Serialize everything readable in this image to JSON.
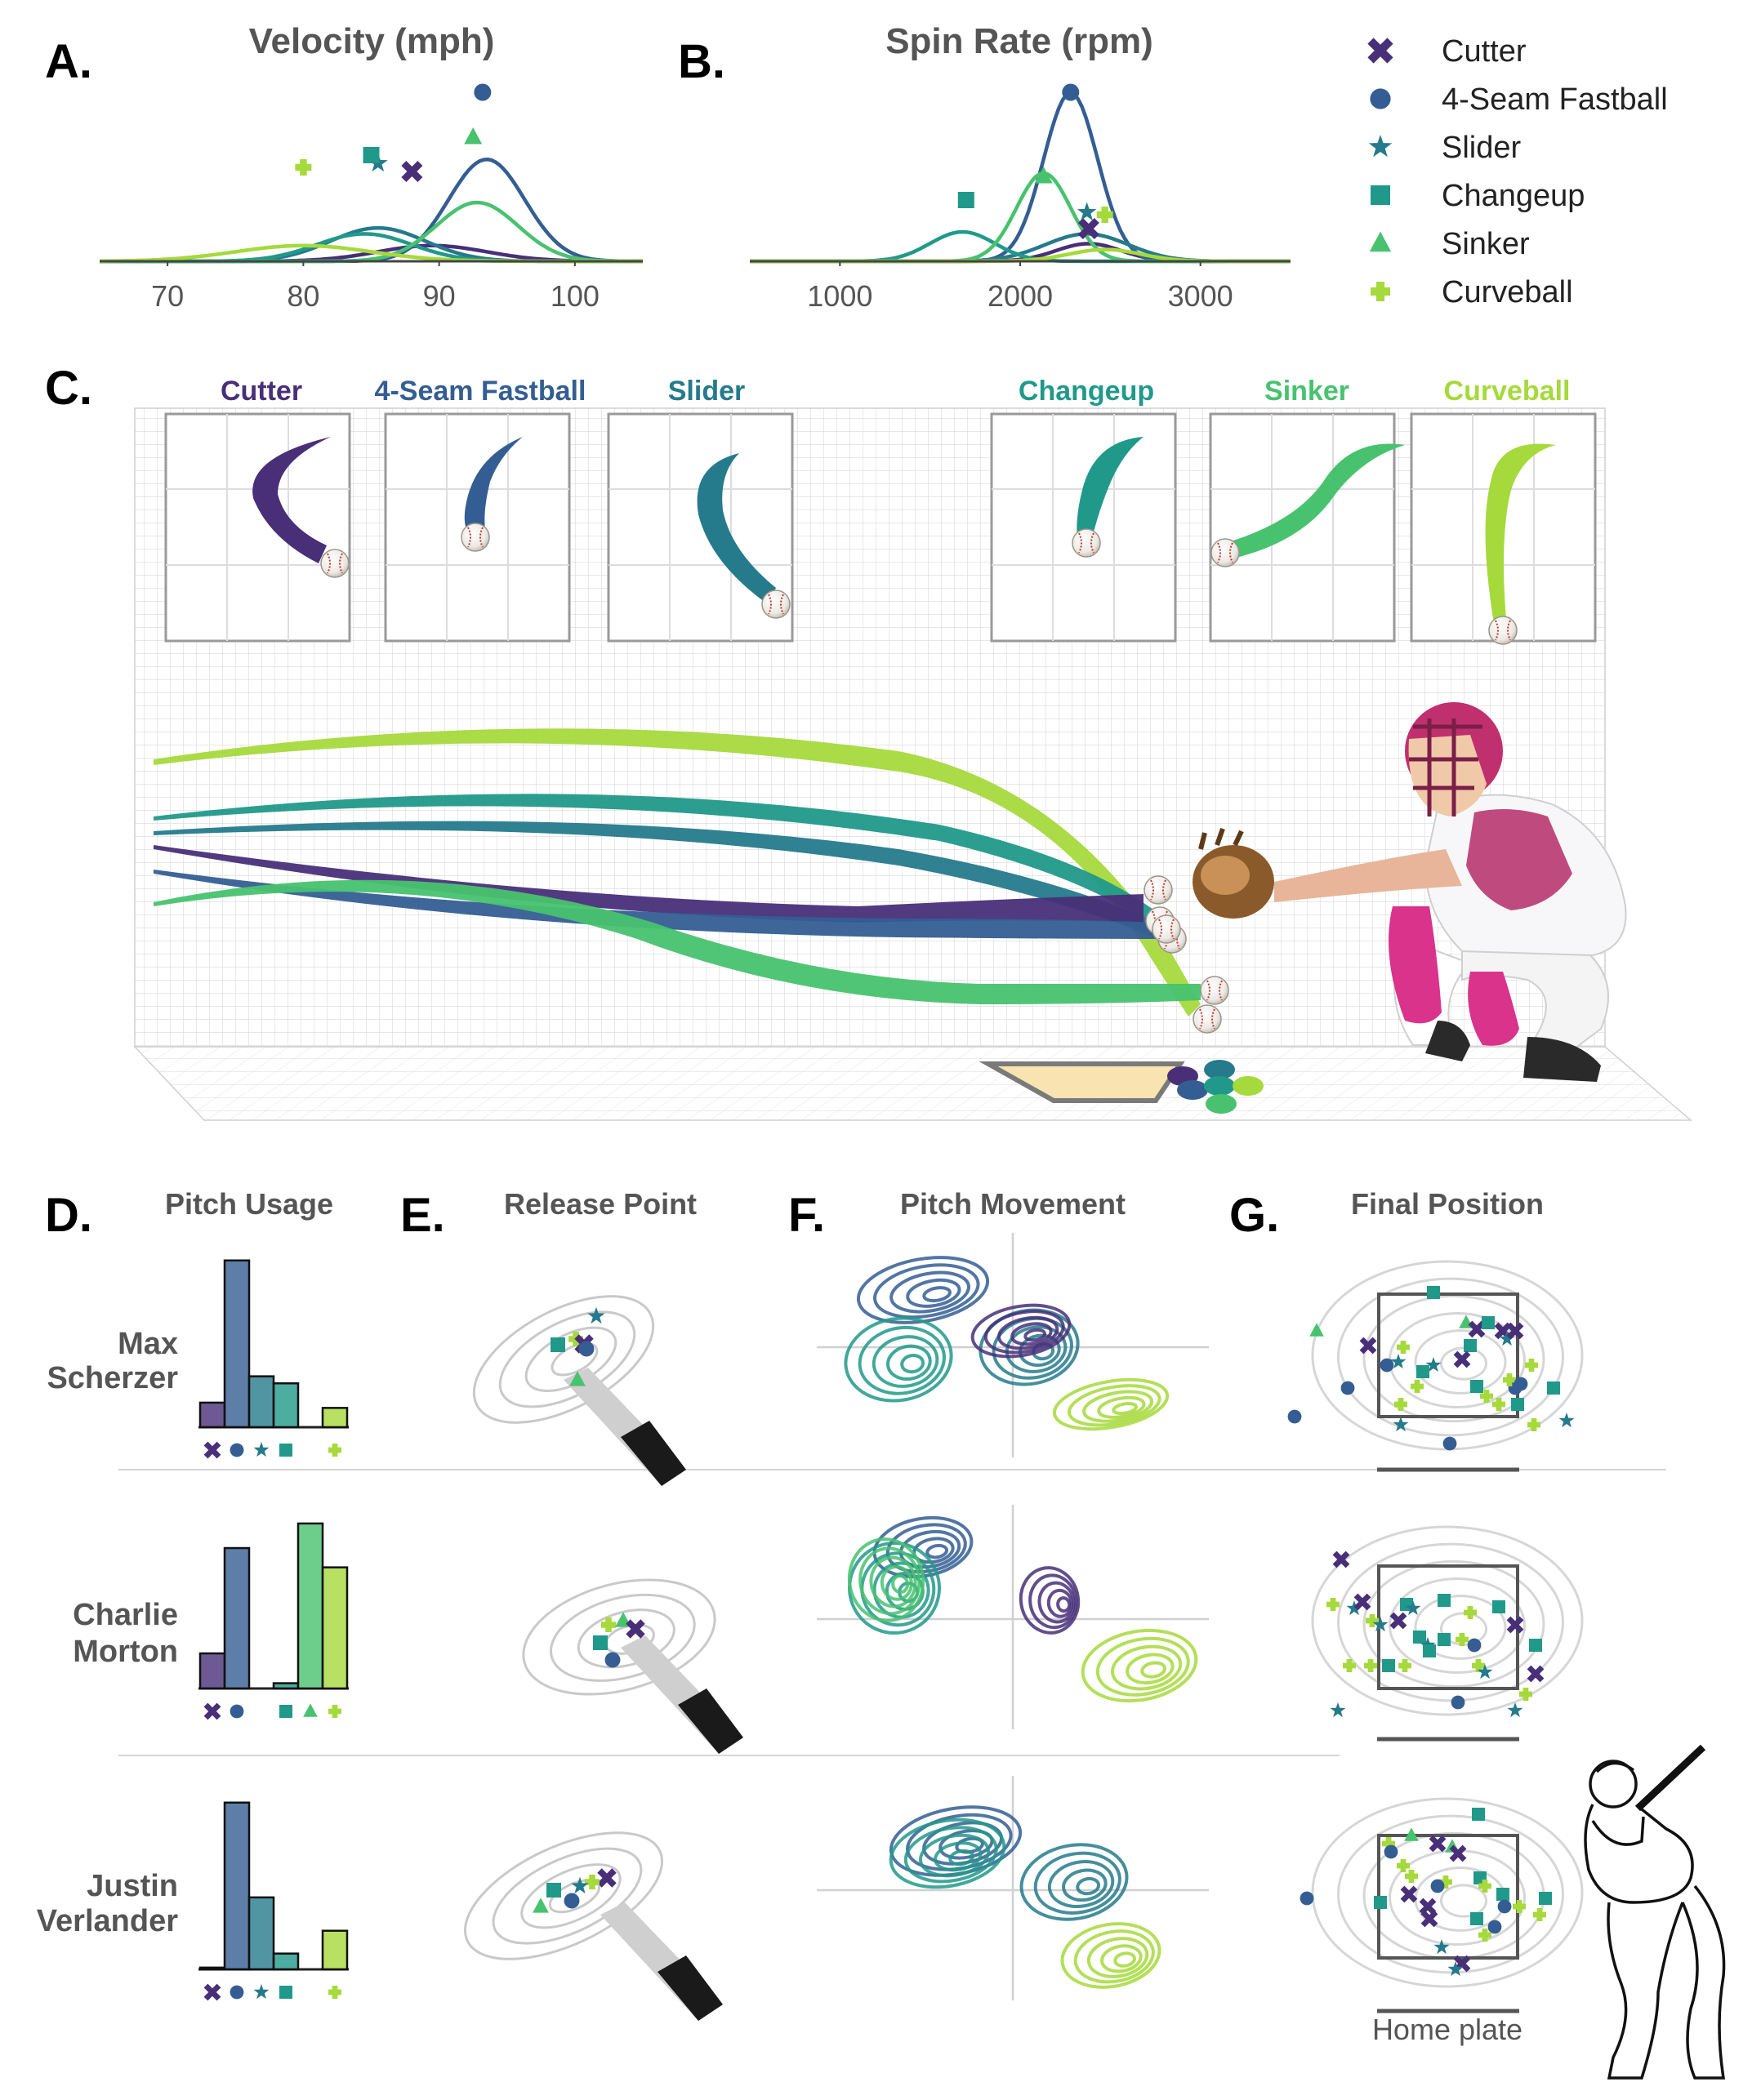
{
  "colors": {
    "Cutter": "#482f78",
    "4-Seam Fastball": "#345e93",
    "Slider": "#257a8c",
    "Changeup": "#20998a",
    "Sinker": "#48c26f",
    "Curveball": "#a6d93c"
  },
  "pitch_markers": {
    "Cutter": "x-marker-icon",
    "4-Seam Fastball": "circle-marker-icon",
    "Slider": "star-marker-icon",
    "Changeup": "square-marker-icon",
    "Sinker": "triangle-marker-icon",
    "Curveball": "plus-marker-icon"
  },
  "panel_letters": {
    "a": "A.",
    "b": "B.",
    "c": "C.",
    "d": "D.",
    "e": "E.",
    "f": "F.",
    "g": "G."
  },
  "legend": [
    "Cutter",
    "4-Seam Fastball",
    "Slider",
    "Changeup",
    "Sinker",
    "Curveball"
  ],
  "panel_c": {
    "pitch_labels": [
      "Cutter",
      "4-Seam Fastball",
      "Slider",
      "Changeup",
      "Sinker",
      "Curveball"
    ]
  },
  "row_titles": {
    "d": "Pitch Usage",
    "e": "Release Point",
    "f": "Pitch Movement",
    "g": "Final Position"
  },
  "pitchers": [
    {
      "line1": "Max",
      "line2": "Scherzer"
    },
    {
      "line1": "Charlie",
      "line2": "Morton"
    },
    {
      "line1": "Justin",
      "line2": "Verlander"
    }
  ],
  "home_plate_label": "Home plate",
  "chart_data": [
    {
      "type": "area",
      "panel": "A",
      "title": "Velocity (mph)",
      "xlim": [
        65,
        105
      ],
      "xticks": [
        70,
        80,
        90,
        100
      ],
      "series": [
        {
          "name": "Cutter",
          "mean_point": 88.0,
          "density_mean": 89.5,
          "density_sd": 4.0,
          "density_peak": 0.08
        },
        {
          "name": "4-Seam Fastball",
          "mean_point": 93.2,
          "density_mean": 93.5,
          "density_sd": 2.8,
          "density_peak": 0.52
        },
        {
          "name": "Slider",
          "mean_point": 85.5,
          "density_mean": 85.5,
          "density_sd": 3.5,
          "density_peak": 0.17
        },
        {
          "name": "Changeup",
          "mean_point": 85.0,
          "density_mean": 84.5,
          "density_sd": 3.5,
          "density_peak": 0.14
        },
        {
          "name": "Sinker",
          "mean_point": 92.5,
          "density_mean": 92.8,
          "density_sd": 3.0,
          "density_peak": 0.3
        },
        {
          "name": "Curveball",
          "mean_point": 80.0,
          "density_mean": 80.0,
          "density_sd": 5.0,
          "density_peak": 0.08
        }
      ]
    },
    {
      "type": "area",
      "panel": "B",
      "title": "Spin Rate (rpm)",
      "xlim": [
        500,
        3500
      ],
      "xticks": [
        1000,
        2000,
        3000
      ],
      "series": [
        {
          "name": "Cutter",
          "mean_point": 2380,
          "density_mean": 2380,
          "density_sd": 180,
          "density_peak": 0.09
        },
        {
          "name": "4-Seam Fastball",
          "mean_point": 2280,
          "density_mean": 2280,
          "density_sd": 150,
          "density_peak": 0.86
        },
        {
          "name": "Slider",
          "mean_point": 2370,
          "density_mean": 2370,
          "density_sd": 230,
          "density_peak": 0.14
        },
        {
          "name": "Changeup",
          "mean_point": 1700,
          "density_mean": 1680,
          "density_sd": 180,
          "density_peak": 0.15
        },
        {
          "name": "Sinker",
          "mean_point": 2130,
          "density_mean": 2130,
          "density_sd": 150,
          "density_peak": 0.45
        },
        {
          "name": "Curveball",
          "mean_point": 2470,
          "density_mean": 2470,
          "density_sd": 200,
          "density_peak": 0.06
        }
      ]
    },
    {
      "type": "bar",
      "panel": "D",
      "title": "Pitch Usage",
      "categories": [
        "Cutter",
        "4-Seam Fastball",
        "Slider",
        "Changeup",
        "Sinker",
        "Curveball"
      ],
      "series": [
        {
          "name": "Max Scherzer",
          "values": [
            0.14,
            0.95,
            0.29,
            0.25,
            0.0,
            0.11
          ]
        },
        {
          "name": "Charlie Morton",
          "values": [
            0.2,
            0.8,
            0.0,
            0.03,
            0.94,
            0.69
          ]
        },
        {
          "name": "Justin Verlander",
          "values": [
            0.01,
            0.95,
            0.41,
            0.09,
            0.0,
            0.22
          ]
        }
      ]
    }
  ]
}
